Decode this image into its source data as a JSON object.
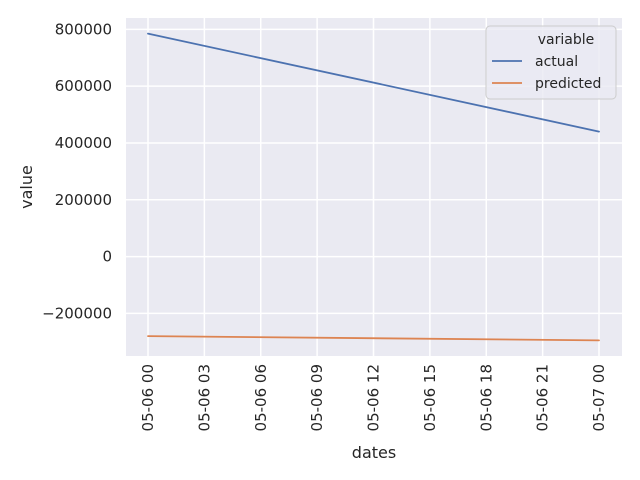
{
  "chart_data": {
    "type": "line",
    "title": "",
    "xlabel": "dates",
    "ylabel": "value",
    "x_ticks": [
      "05-06 00",
      "05-06 03",
      "05-06 06",
      "05-06 09",
      "05-06 12",
      "05-06 15",
      "05-06 18",
      "05-06 21",
      "05-07 00"
    ],
    "y_ticks": [
      "−200000",
      "0",
      "200000",
      "400000",
      "600000",
      "800000"
    ],
    "y_tick_values": [
      -200000,
      0,
      200000,
      400000,
      600000,
      800000
    ],
    "ylim": [
      -350000,
      840000
    ],
    "x": [
      "05-06 00",
      "05-07 00"
    ],
    "series": [
      {
        "name": "actual",
        "values": [
          785000,
          440000
        ],
        "color": "#4c72b0"
      },
      {
        "name": "predicted",
        "values": [
          -280000,
          -295000
        ],
        "color": "#dd8452"
      }
    ],
    "legend": {
      "title": "variable",
      "placement": "top-right"
    },
    "grid": true,
    "background": "#eaeaf2"
  }
}
